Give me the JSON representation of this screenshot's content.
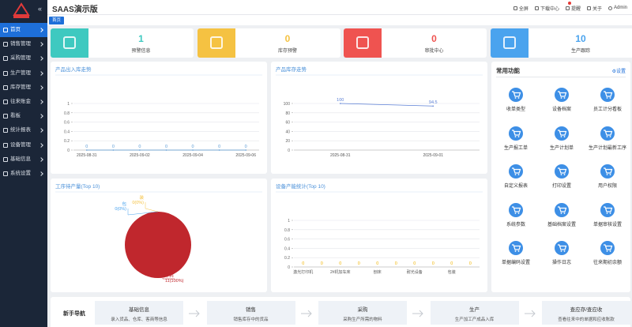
{
  "sidebar": {
    "menu": [
      "首页",
      "销售管理",
      "采购管理",
      "生产管理",
      "库存管理",
      "往来账金",
      "看板",
      "统计报表",
      "设备管理",
      "基础信息",
      "系统设置"
    ]
  },
  "header": {
    "title": "SAAS演示版",
    "actions": [
      "全屏",
      "下载中心",
      "提醒",
      "关于",
      "Admin"
    ]
  },
  "tabs": [
    "首页"
  ],
  "stats": [
    {
      "value": 1,
      "label": "预警信息",
      "color": "#3ec9c0"
    },
    {
      "value": 0,
      "label": "库存预警",
      "color": "#f5c242"
    },
    {
      "value": 0,
      "label": "审批中心",
      "color": "#ef5350"
    },
    {
      "value": 10,
      "label": "生产跟踪",
      "color": "#4aa3ee"
    }
  ],
  "charts": [
    {
      "type": "line",
      "title": "产品出入库走势",
      "categories": [
        "2025-08-31",
        null,
        "2025-09-02",
        null,
        "2025-09-04",
        null,
        "2025-09-06"
      ],
      "values": [
        0,
        0,
        0,
        0,
        0,
        0,
        0
      ],
      "color": "#5b9bd5",
      "ylim": [
        0,
        1
      ],
      "yticks": [
        0,
        0.2,
        0.4,
        0.6,
        0.8,
        1
      ]
    },
    {
      "type": "line",
      "title": "产品库存走势",
      "categories": [
        "2025-08-31",
        "2025-09-01"
      ],
      "values": [
        100,
        94.5
      ],
      "color": "#5b7fd5",
      "ylim": [
        0,
        100
      ],
      "yticks": [
        0,
        20,
        40,
        60,
        80,
        100
      ]
    },
    {
      "type": "pie",
      "title": "工序待产量(Top 10)",
      "categories": [
        "下料",
        "包",
        "装"
      ],
      "values": [
        11,
        0,
        0
      ],
      "value_labels": [
        "11(100%)",
        "0(0%)",
        "0(0%)"
      ],
      "colors": [
        "#c0272d",
        "#4aa3ee",
        "#f5c242"
      ]
    },
    {
      "type": "bar",
      "title": "设备产能统计(Top 10)",
      "categories": [
        "激光打印机",
        null,
        "2#机加车床",
        null,
        "刨床",
        null,
        "耐光设备",
        null,
        "包装",
        null
      ],
      "values": [
        0,
        0,
        0,
        0,
        0,
        0,
        0,
        0,
        0,
        0
      ],
      "color": "#f0b400",
      "ylim": [
        0,
        1
      ],
      "yticks": [
        0,
        0.2,
        0.4,
        0.6,
        0.8,
        1
      ]
    }
  ],
  "functions": {
    "title": "常用功能",
    "settings": "设置",
    "items": [
      "收单类型",
      "设备档案",
      "员工计分看板",
      "生产报工单",
      "生产计划单",
      "生产计划最新工序",
      "自定义报表",
      "打印设置",
      "用户权限",
      "系统参数",
      "基础档案设置",
      "单据审核设置",
      "单据编码设置",
      "操作日志",
      "往来期初余额"
    ]
  },
  "guide": {
    "title": "新手导航",
    "steps": [
      {
        "title": "基础信息",
        "desc": "录入货品、仓库、客商等信息"
      },
      {
        "title": "销售",
        "desc": "销售库存中的货品"
      },
      {
        "title": "采购",
        "desc": "采购生产所需的物料"
      },
      {
        "title": "生产",
        "desc": "生产加工产成品入库"
      },
      {
        "title": "查应存/查应收",
        "desc": "查看往来中的单据和应收账款"
      }
    ]
  }
}
